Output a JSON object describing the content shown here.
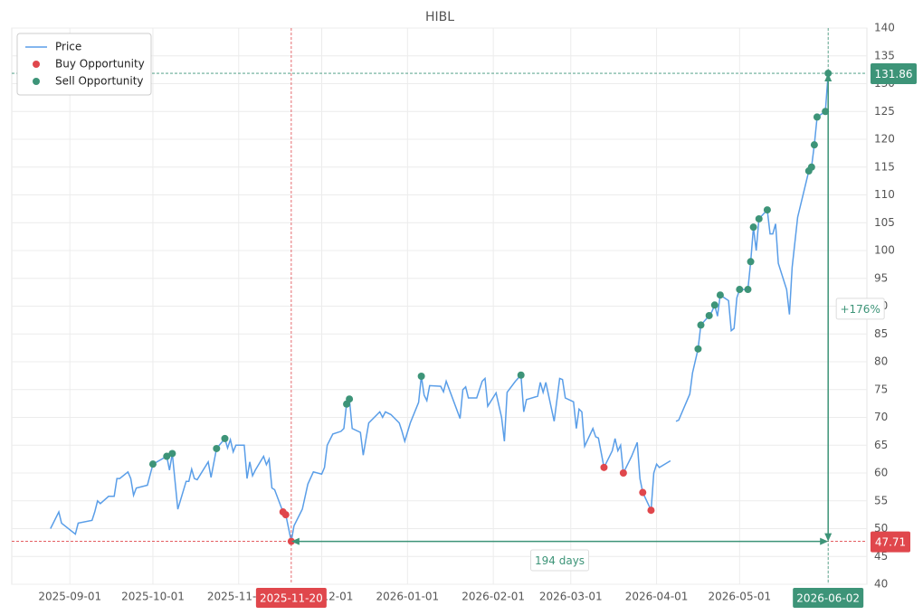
{
  "chart_data": {
    "type": "line",
    "title": "HIBL",
    "xlim": [
      "2025-08-11",
      "2026-06-16"
    ],
    "xticks": [
      "2025-09-01",
      "2025-10-01",
      "2025-11-01",
      "2025-12-01",
      "2026-01-01",
      "2026-02-01",
      "2026-03-01",
      "2026-04-01",
      "2026-05-01",
      "2026-06-02"
    ],
    "ylim": [
      40,
      140
    ],
    "yticks": [
      40,
      45,
      50,
      55,
      60,
      65,
      70,
      75,
      80,
      85,
      90,
      95,
      100,
      105,
      110,
      115,
      120,
      125,
      130,
      135,
      140
    ],
    "grid": true,
    "legend": "upper left",
    "series": [
      {
        "name": "Price",
        "type": "line",
        "color": "#5a9ee8",
        "x": [
          "2025-08-25",
          "2025-08-28",
          "2025-08-29",
          "2025-09-03",
          "2025-09-04",
          "2025-09-09",
          "2025-09-10",
          "2025-09-11",
          "2025-09-12",
          "2025-09-15",
          "2025-09-17",
          "2025-09-18",
          "2025-09-19",
          "2025-09-22",
          "2025-09-23",
          "2025-09-24",
          "2025-09-25",
          "2025-09-29",
          "2025-10-01",
          "2025-10-06",
          "2025-10-07",
          "2025-10-08",
          "2025-10-10",
          "2025-10-13",
          "2025-10-14",
          "2025-10-15",
          "2025-10-16",
          "2025-10-17",
          "2025-10-21",
          "2025-10-22",
          "2025-10-24",
          "2025-10-27",
          "2025-10-28",
          "2025-10-29",
          "2025-10-30",
          "2025-10-31",
          "2025-11-03",
          "2025-11-04",
          "2025-11-05",
          "2025-11-06",
          "2025-11-07",
          "2025-11-10",
          "2025-11-11",
          "2025-11-12",
          "2025-11-13",
          "2025-11-14",
          "2025-11-17",
          "2025-11-18",
          "2025-11-20",
          "2025-11-21",
          "2025-11-24",
          "2025-11-26",
          "2025-11-28",
          "2025-12-01",
          "2025-12-02",
          "2025-12-03",
          "2025-12-05",
          "2025-12-08",
          "2025-12-09",
          "2025-12-10",
          "2025-12-11",
          "2025-12-12",
          "2025-12-15",
          "2025-12-16",
          "2025-12-18",
          "2025-12-22",
          "2025-12-23",
          "2025-12-24",
          "2025-12-26",
          "2025-12-29",
          "2025-12-30",
          "2025-12-31",
          "2026-01-02",
          "2026-01-05",
          "2026-01-06",
          "2026-01-07",
          "2026-01-08",
          "2026-01-09",
          "2026-01-13",
          "2026-01-14",
          "2026-01-15",
          "2026-01-20",
          "2026-01-21",
          "2026-01-22",
          "2026-01-23",
          "2026-01-26",
          "2026-01-28",
          "2026-01-29",
          "2026-01-30",
          "2026-02-02",
          "2026-02-04",
          "2026-02-05",
          "2026-02-06",
          "2026-02-09",
          "2026-02-11",
          "2026-02-12",
          "2026-02-13",
          "2026-02-17",
          "2026-02-18",
          "2026-02-19",
          "2026-02-20",
          "2026-02-23",
          "2026-02-25",
          "2026-02-26",
          "2026-02-27",
          "2026-03-02",
          "2026-03-03",
          "2026-03-04",
          "2026-03-05",
          "2026-03-06",
          "2026-03-09",
          "2026-03-10",
          "2026-03-11",
          "2026-03-13",
          "2026-03-16",
          "2026-03-17",
          "2026-03-18",
          "2026-03-19",
          "2026-03-20",
          "2026-03-23",
          "2026-03-25",
          "2026-03-26",
          "2026-03-27",
          "2026-03-30",
          "2026-03-31",
          "2026-04-01",
          "2026-04-02",
          "2026-04-06",
          "2026-04-07",
          "2026-04-08",
          "2026-04-09",
          "2026-04-13",
          "2026-04-14",
          "2026-04-16",
          "2026-04-17",
          "2026-04-20",
          "2026-04-21",
          "2026-04-22",
          "2026-04-23",
          "2026-04-24",
          "2026-04-27",
          "2026-04-28",
          "2026-04-29",
          "2026-04-30",
          "2026-05-01",
          "2026-05-04",
          "2026-05-05",
          "2026-05-06",
          "2026-05-07",
          "2026-05-08",
          "2026-05-11",
          "2026-05-12",
          "2026-05-13",
          "2026-05-14",
          "2026-05-15",
          "2026-05-18",
          "2026-05-19",
          "2026-05-20",
          "2026-05-22",
          "2026-05-26",
          "2026-05-27",
          "2026-05-28",
          "2026-05-29",
          "2026-06-01",
          "2026-06-02"
        ],
        "values": [
          50,
          53,
          51,
          49,
          51,
          51.5,
          53,
          55,
          54.5,
          55.8,
          55.8,
          59,
          59,
          60.2,
          59,
          56,
          57.3,
          57.8,
          61.6,
          63,
          60.5,
          63.5,
          53.5,
          58.5,
          58.5,
          60.7,
          59,
          58.8,
          62,
          59.2,
          64.4,
          66.2,
          64.5,
          66,
          63.8,
          65,
          65,
          59,
          62,
          59.5,
          60.5,
          63,
          61.5,
          62.5,
          57.3,
          57,
          53,
          52.5,
          47.71,
          50.5,
          53.5,
          58,
          60.2,
          59.8,
          61,
          65,
          67,
          67.5,
          68,
          72.4,
          73.3,
          68,
          67.3,
          63.2,
          69,
          71,
          70,
          71,
          70.5,
          69,
          67.5,
          65.7,
          69,
          72.7,
          77.4,
          74,
          73,
          75.7,
          75.6,
          74.6,
          76.5,
          69.8,
          75,
          75.5,
          73.5,
          73.5,
          76.5,
          77,
          72,
          74.4,
          70,
          65.7,
          74.5,
          76.5,
          77.6,
          71,
          73.2,
          73.8,
          76.3,
          74.5,
          76.3,
          69.3,
          77,
          76.8,
          73.5,
          72.8,
          68,
          71.5,
          71,
          64.8,
          68,
          66.5,
          66.3,
          61,
          64,
          66.2,
          64,
          65,
          60,
          63,
          65.5,
          59,
          56.5,
          53.3,
          60,
          61.6,
          61,
          62.2,
          null,
          69.3,
          69.5,
          74.2,
          78,
          82.3,
          86.6,
          88.3,
          89,
          90.2,
          88.2,
          92,
          91,
          85.6,
          86,
          91.5,
          93,
          93,
          98,
          104.2,
          100,
          105.7,
          107.3,
          103,
          103,
          104.8,
          97.7,
          93,
          88.5,
          97,
          106,
          114.3,
          115,
          119,
          124,
          125,
          131.86
        ]
      },
      {
        "name": "Buy Opportunity",
        "type": "scatter",
        "color": "#e0474c",
        "x": [
          "2025-11-17",
          "2025-11-18",
          "2025-11-20",
          "2026-03-13",
          "2026-03-20",
          "2026-03-27",
          "2026-03-30"
        ],
        "values": [
          53,
          52.5,
          47.71,
          61,
          60,
          56.5,
          53.3
        ]
      },
      {
        "name": "Sell Opportunity",
        "type": "scatter",
        "color": "#3d9478",
        "x": [
          "2025-10-01",
          "2025-10-06",
          "2025-10-08",
          "2025-10-24",
          "2025-10-27",
          "2025-12-10",
          "2025-12-11",
          "2026-01-06",
          "2026-02-11",
          "2026-04-16",
          "2026-04-17",
          "2026-04-20",
          "2026-04-22",
          "2026-04-24",
          "2026-05-01",
          "2026-05-04",
          "2026-05-05",
          "2026-05-06",
          "2026-05-08",
          "2026-05-11",
          "2026-05-26",
          "2026-05-27",
          "2026-05-28",
          "2026-05-29",
          "2026-06-01",
          "2026-06-02"
        ],
        "values": [
          61.6,
          63,
          63.5,
          64.4,
          66.2,
          72.4,
          73.3,
          77.4,
          77.6,
          82.3,
          86.6,
          88.3,
          90.2,
          92,
          93,
          93,
          98,
          104.2,
          105.7,
          107.3,
          114.3,
          115,
          119,
          124,
          125,
          131.86
        ]
      }
    ],
    "annotations": {
      "start": {
        "date": "2025-11-20",
        "price": 47.71,
        "color": "#e0474c"
      },
      "end": {
        "date": "2026-06-02",
        "price": 131.86,
        "color": "#3d9478"
      },
      "duration_label": "194 days",
      "change_label": "+176%"
    }
  }
}
